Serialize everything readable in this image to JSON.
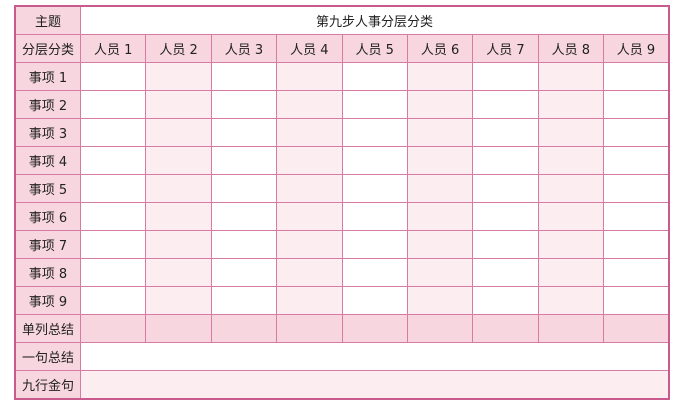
{
  "title_label": "主题",
  "title": "第九步人事分层分类",
  "corner_label": "分层分类",
  "people": [
    "人员 1",
    "人员 2",
    "人员 3",
    "人员 4",
    "人员 5",
    "人员 6",
    "人员 7",
    "人员 8",
    "人员 9"
  ],
  "items": [
    "事项 1",
    "事项 2",
    "事项 3",
    "事项 4",
    "事项 5",
    "事项 6",
    "事项 7",
    "事项 8",
    "事项 9"
  ],
  "column_summary_label": "单列总结",
  "sentence_summary_label": "一句总结",
  "golden_line_label": "九行金句",
  "colors": {
    "label_bg": "#f7d6df",
    "alt_bg": "#fcedf1",
    "border": "#c85a8e"
  }
}
